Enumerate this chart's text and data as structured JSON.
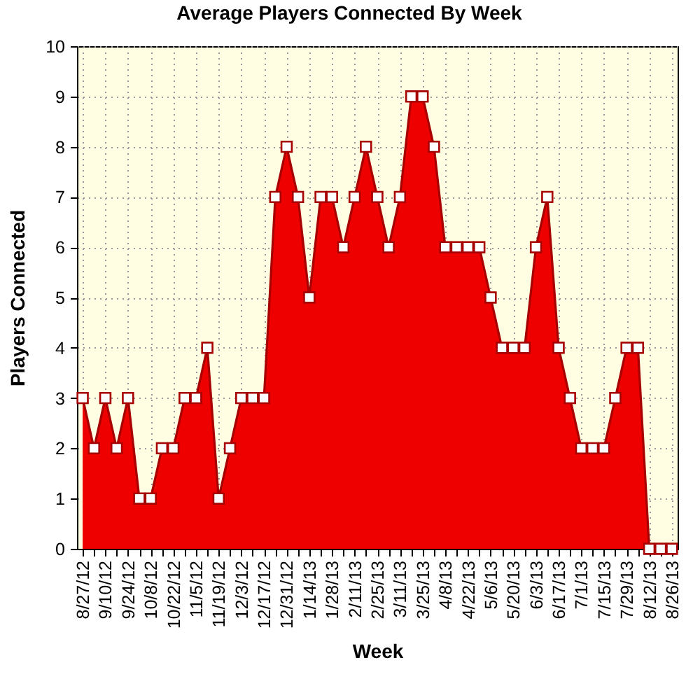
{
  "chart_data": {
    "type": "area",
    "title": "Average Players Connected By Week",
    "xlabel": "Week",
    "ylabel": "Players Connected",
    "categories": [
      "8/27/12",
      null,
      "9/10/12",
      null,
      "9/24/12",
      null,
      "10/8/12",
      null,
      "10/22/12",
      null,
      "11/5/12",
      null,
      "11/19/12",
      null,
      "12/3/12",
      null,
      "12/17/12",
      null,
      "12/31/12",
      null,
      "1/14/13",
      null,
      "1/28/13",
      null,
      "2/11/13",
      null,
      "2/25/13",
      null,
      "3/11/13",
      null,
      "3/25/13",
      null,
      "4/8/13",
      null,
      "4/22/13",
      null,
      "5/6/13",
      null,
      "5/20/13",
      null,
      "6/3/13",
      null,
      "6/17/13",
      null,
      "7/1/13",
      null,
      "7/15/13",
      null,
      "7/29/13",
      null,
      "8/12/13",
      null,
      "8/26/13"
    ],
    "series": [
      {
        "color": "#ee0000",
        "values": [
          3,
          2,
          3,
          2,
          3,
          1,
          1,
          2,
          2,
          3,
          3,
          4,
          1,
          2,
          3,
          3,
          3,
          7,
          8,
          7,
          5,
          7,
          7,
          6,
          7,
          8,
          7,
          6,
          7,
          9,
          9,
          8,
          6,
          6,
          6,
          6,
          5,
          4,
          4,
          4,
          6,
          7,
          4,
          3,
          2,
          2,
          2,
          3,
          4,
          4,
          0,
          0,
          0
        ]
      }
    ],
    "ylim": [
      0,
      10
    ],
    "yticks": [
      0,
      1,
      2,
      3,
      4,
      5,
      6,
      7,
      8,
      9,
      10
    ],
    "grid": true,
    "marker": "square"
  }
}
